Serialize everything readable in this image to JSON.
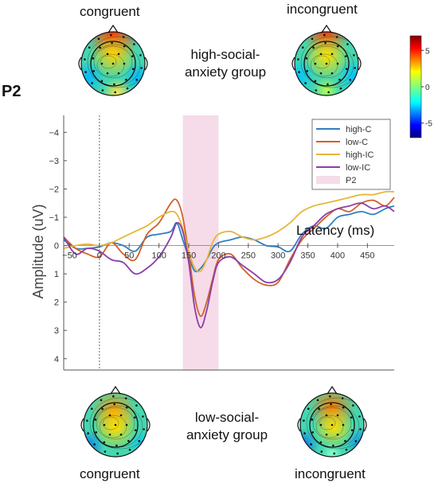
{
  "panel_label": "P2",
  "top": {
    "left_label": "congruent",
    "right_label": "incongruent",
    "group_line1": "high-social-",
    "group_line2": "anxiety  group"
  },
  "bottom": {
    "left_label": "congruent",
    "right_label": "incongruent",
    "group_line1": "low-social-",
    "group_line2": "anxiety  group"
  },
  "colorbar": {
    "ticks": [
      "5",
      "0",
      "-5"
    ],
    "min": -7,
    "max": 7
  },
  "colors": {
    "high-C": "#2f7fc1",
    "low-C": "#d2602b",
    "high-IC": "#e8b53a",
    "low-IC": "#8a3fa8",
    "P2": "#f6dbe8"
  },
  "chart_data": {
    "type": "line",
    "xlabel": "Latency (ms)",
    "ylabel": "Amplitude (uV)",
    "xlim": [
      -60,
      495
    ],
    "ylim": [
      -4.6,
      4.4
    ],
    "y_inverted": true,
    "x_ticks": [
      -50,
      0,
      50,
      100,
      150,
      200,
      250,
      300,
      350,
      400,
      450
    ],
    "y_ticks": [
      -4,
      -3,
      -2,
      -1,
      0,
      1,
      2,
      3,
      4
    ],
    "shaded_window": {
      "name": "P2",
      "x": [
        140,
        200
      ]
    },
    "stimulus_onset": 0,
    "legend_position": "top-right",
    "series": [
      {
        "name": "high-C",
        "x": [
          -60,
          -40,
          -20,
          0,
          20,
          40,
          60,
          80,
          100,
          120,
          130,
          140,
          150,
          160,
          170,
          180,
          190,
          200,
          220,
          240,
          260,
          280,
          300,
          320,
          340,
          360,
          380,
          400,
          420,
          440,
          460,
          480,
          495
        ],
        "y": [
          -0.2,
          0.1,
          0.1,
          0.05,
          -0.1,
          0,
          0.2,
          -0.3,
          -0.4,
          -0.5,
          -0.8,
          -0.2,
          0.4,
          0.9,
          0.8,
          0.5,
          0.1,
          -0.1,
          -0.2,
          -0.3,
          -0.2,
          0,
          0.05,
          0.2,
          -0.4,
          -0.7,
          -0.6,
          -1.0,
          -1.1,
          -1.2,
          -1.1,
          -1.3,
          -1.4
        ]
      },
      {
        "name": "low-C",
        "x": [
          -60,
          -40,
          -20,
          0,
          20,
          40,
          60,
          80,
          100,
          120,
          130,
          140,
          150,
          160,
          170,
          180,
          190,
          200,
          220,
          240,
          260,
          280,
          300,
          320,
          340,
          360,
          380,
          400,
          420,
          440,
          460,
          480,
          495
        ],
        "y": [
          -0.3,
          0.1,
          0.3,
          0.4,
          -0.1,
          0.3,
          0.5,
          -0.4,
          -0.8,
          -1.5,
          -1.6,
          -1.0,
          0.3,
          1.8,
          2.5,
          2.0,
          1.2,
          0.5,
          0.3,
          0.8,
          1.2,
          1.4,
          1.3,
          0.5,
          -0.2,
          -0.6,
          -1.0,
          -1.3,
          -1.2,
          -1.5,
          -1.6,
          -1.4,
          -1.7
        ]
      },
      {
        "name": "high-IC",
        "x": [
          -60,
          -40,
          -20,
          0,
          20,
          40,
          60,
          80,
          100,
          120,
          130,
          140,
          150,
          160,
          170,
          180,
          190,
          200,
          220,
          240,
          260,
          280,
          300,
          320,
          340,
          360,
          380,
          400,
          420,
          440,
          460,
          480,
          495
        ],
        "y": [
          0.1,
          0,
          -0.05,
          0,
          -0.1,
          -0.3,
          -0.5,
          -0.7,
          -1.0,
          -1.2,
          -1.1,
          -0.6,
          0.2,
          0.8,
          0.9,
          0.5,
          -0.1,
          -0.4,
          -0.5,
          -0.3,
          -0.2,
          -0.3,
          -0.5,
          -0.8,
          -1.2,
          -1.4,
          -1.5,
          -1.6,
          -1.7,
          -1.8,
          -1.8,
          -1.9,
          -1.9
        ]
      },
      {
        "name": "low-IC",
        "x": [
          -60,
          -40,
          -20,
          0,
          20,
          40,
          60,
          80,
          100,
          120,
          130,
          140,
          150,
          160,
          170,
          180,
          190,
          200,
          220,
          240,
          260,
          280,
          300,
          320,
          340,
          360,
          380,
          400,
          420,
          440,
          460,
          480,
          495
        ],
        "y": [
          -0.3,
          0.3,
          0.1,
          0.2,
          0.5,
          0.6,
          1.0,
          0.8,
          0.4,
          -0.3,
          -0.8,
          -0.5,
          0.6,
          2.2,
          2.9,
          2.3,
          1.3,
          0.6,
          0.4,
          0.7,
          1.0,
          1.3,
          1.2,
          0.6,
          -0.3,
          -0.7,
          -1.1,
          -1.3,
          -1.4,
          -1.5,
          -1.3,
          -1.4,
          -1.2
        ]
      }
    ]
  }
}
